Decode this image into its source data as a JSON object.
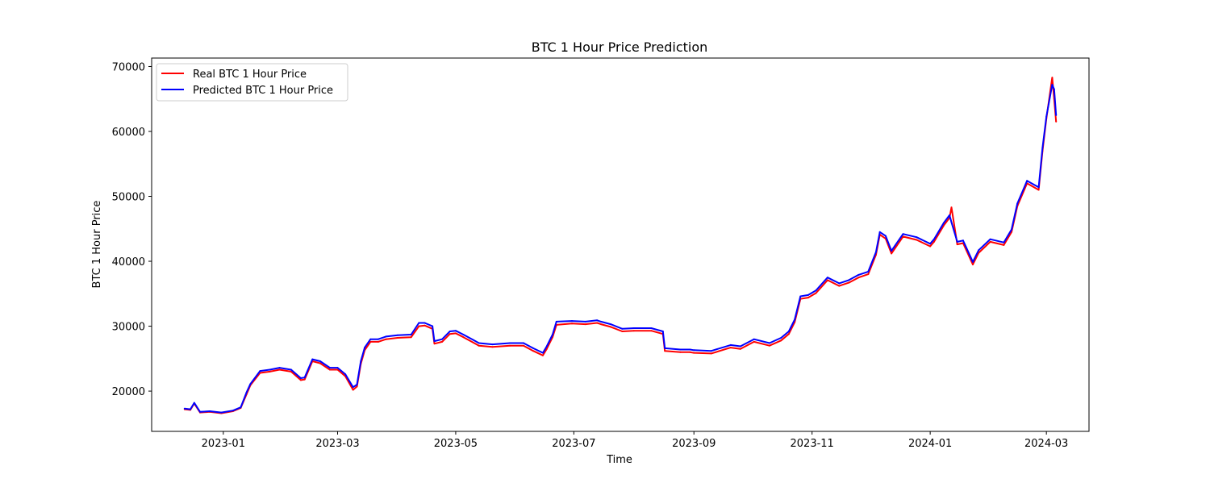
{
  "chart_data": {
    "type": "line",
    "title": "BTC 1 Hour Price Prediction",
    "xlabel": "Time",
    "ylabel": "BTC 1 Hour Price",
    "xlim": [
      "2022-11-25",
      "2024-03-23"
    ],
    "ylim": [
      13800,
      71300
    ],
    "x_ticks": [
      "2023-01",
      "2023-03",
      "2023-05",
      "2023-07",
      "2023-09",
      "2023-11",
      "2024-01",
      "2024-03"
    ],
    "y_ticks": [
      20000,
      30000,
      40000,
      50000,
      60000,
      70000
    ],
    "grid": false,
    "legend": "top-left",
    "x": [
      "2022-12-12",
      "2022-12-15",
      "2022-12-17",
      "2022-12-20",
      "2022-12-25",
      "2022-12-31",
      "2023-01-06",
      "2023-01-10",
      "2023-01-13",
      "2023-01-15",
      "2023-01-20",
      "2023-01-25",
      "2023-01-30",
      "2023-02-05",
      "2023-02-10",
      "2023-02-12",
      "2023-02-16",
      "2023-02-20",
      "2023-02-25",
      "2023-03-01",
      "2023-03-05",
      "2023-03-09",
      "2023-03-11",
      "2023-03-13",
      "2023-03-15",
      "2023-03-18",
      "2023-03-22",
      "2023-03-26",
      "2023-04-01",
      "2023-04-08",
      "2023-04-12",
      "2023-04-15",
      "2023-04-19",
      "2023-04-20",
      "2023-04-24",
      "2023-04-28",
      "2023-05-01",
      "2023-05-05",
      "2023-05-10",
      "2023-05-13",
      "2023-05-20",
      "2023-05-29",
      "2023-06-05",
      "2023-06-10",
      "2023-06-15",
      "2023-06-17",
      "2023-06-20",
      "2023-06-22",
      "2023-06-30",
      "2023-07-07",
      "2023-07-13",
      "2023-07-15",
      "2023-07-20",
      "2023-07-26",
      "2023-08-01",
      "2023-08-10",
      "2023-08-16",
      "2023-08-17",
      "2023-08-25",
      "2023-08-30",
      "2023-09-01",
      "2023-09-10",
      "2023-09-20",
      "2023-09-25",
      "2023-10-02",
      "2023-10-10",
      "2023-10-16",
      "2023-10-20",
      "2023-10-23",
      "2023-10-26",
      "2023-10-30",
      "2023-11-03",
      "2023-11-09",
      "2023-11-15",
      "2023-11-20",
      "2023-11-25",
      "2023-11-30",
      "2023-12-04",
      "2023-12-06",
      "2023-12-09",
      "2023-12-12",
      "2023-12-18",
      "2023-12-25",
      "2024-01-01",
      "2024-01-03",
      "2024-01-08",
      "2024-01-11",
      "2024-01-12",
      "2024-01-15",
      "2024-01-18",
      "2024-01-23",
      "2024-01-26",
      "2024-02-01",
      "2024-02-08",
      "2024-02-12",
      "2024-02-15",
      "2024-02-20",
      "2024-02-26",
      "2024-02-28",
      "2024-03-01",
      "2024-03-04",
      "2024-03-05",
      "2024-03-06"
    ],
    "series": [
      {
        "name": "Real BTC 1 Hour Price",
        "color": "#ff0000",
        "values": [
          17200,
          17100,
          18100,
          16700,
          16800,
          16600,
          16900,
          17400,
          19500,
          20900,
          22800,
          23000,
          23300,
          23000,
          21700,
          21800,
          24600,
          24300,
          23300,
          23300,
          22300,
          20200,
          20700,
          24200,
          26300,
          27600,
          27600,
          28000,
          28200,
          28300,
          30000,
          30100,
          29600,
          27300,
          27600,
          28800,
          28900,
          28300,
          27500,
          27000,
          26800,
          27000,
          27000,
          26200,
          25500,
          26500,
          28300,
          30200,
          30400,
          30300,
          30500,
          30300,
          29900,
          29200,
          29300,
          29300,
          28800,
          26200,
          26000,
          26000,
          25900,
          25800,
          26700,
          26500,
          27600,
          27000,
          27800,
          28800,
          30600,
          34200,
          34400,
          35100,
          37100,
          36200,
          36700,
          37500,
          38000,
          41000,
          44100,
          43500,
          41200,
          43800,
          43300,
          42300,
          43000,
          45500,
          46700,
          48300,
          42600,
          42800,
          39500,
          41300,
          43000,
          42500,
          44500,
          48500,
          52000,
          51000,
          57000,
          62000,
          68300,
          65000,
          61500
        ]
      },
      {
        "name": "Predicted BTC 1 Hour Price",
        "color": "#0000ff",
        "values": [
          17300,
          17200,
          18200,
          16800,
          16900,
          16700,
          17000,
          17500,
          19800,
          21100,
          23100,
          23300,
          23600,
          23300,
          22000,
          22100,
          24900,
          24600,
          23600,
          23600,
          22600,
          20600,
          21000,
          24600,
          26700,
          28000,
          28000,
          28400,
          28600,
          28700,
          30500,
          30500,
          30000,
          27700,
          28000,
          29200,
          29300,
          28700,
          27900,
          27400,
          27200,
          27400,
          27400,
          26600,
          25900,
          26900,
          28700,
          30700,
          30800,
          30700,
          30900,
          30700,
          30300,
          29600,
          29700,
          29700,
          29200,
          26600,
          26400,
          26400,
          26300,
          26200,
          27100,
          26900,
          28000,
          27400,
          28200,
          29200,
          31000,
          34600,
          34800,
          35500,
          37500,
          36600,
          37100,
          37900,
          38400,
          41400,
          44500,
          43900,
          41600,
          44200,
          43700,
          42700,
          43400,
          45900,
          47100,
          46000,
          43000,
          43200,
          39900,
          41700,
          43400,
          42900,
          44900,
          48900,
          52400,
          51400,
          57500,
          62300,
          67200,
          66500,
          62500
        ]
      }
    ]
  }
}
